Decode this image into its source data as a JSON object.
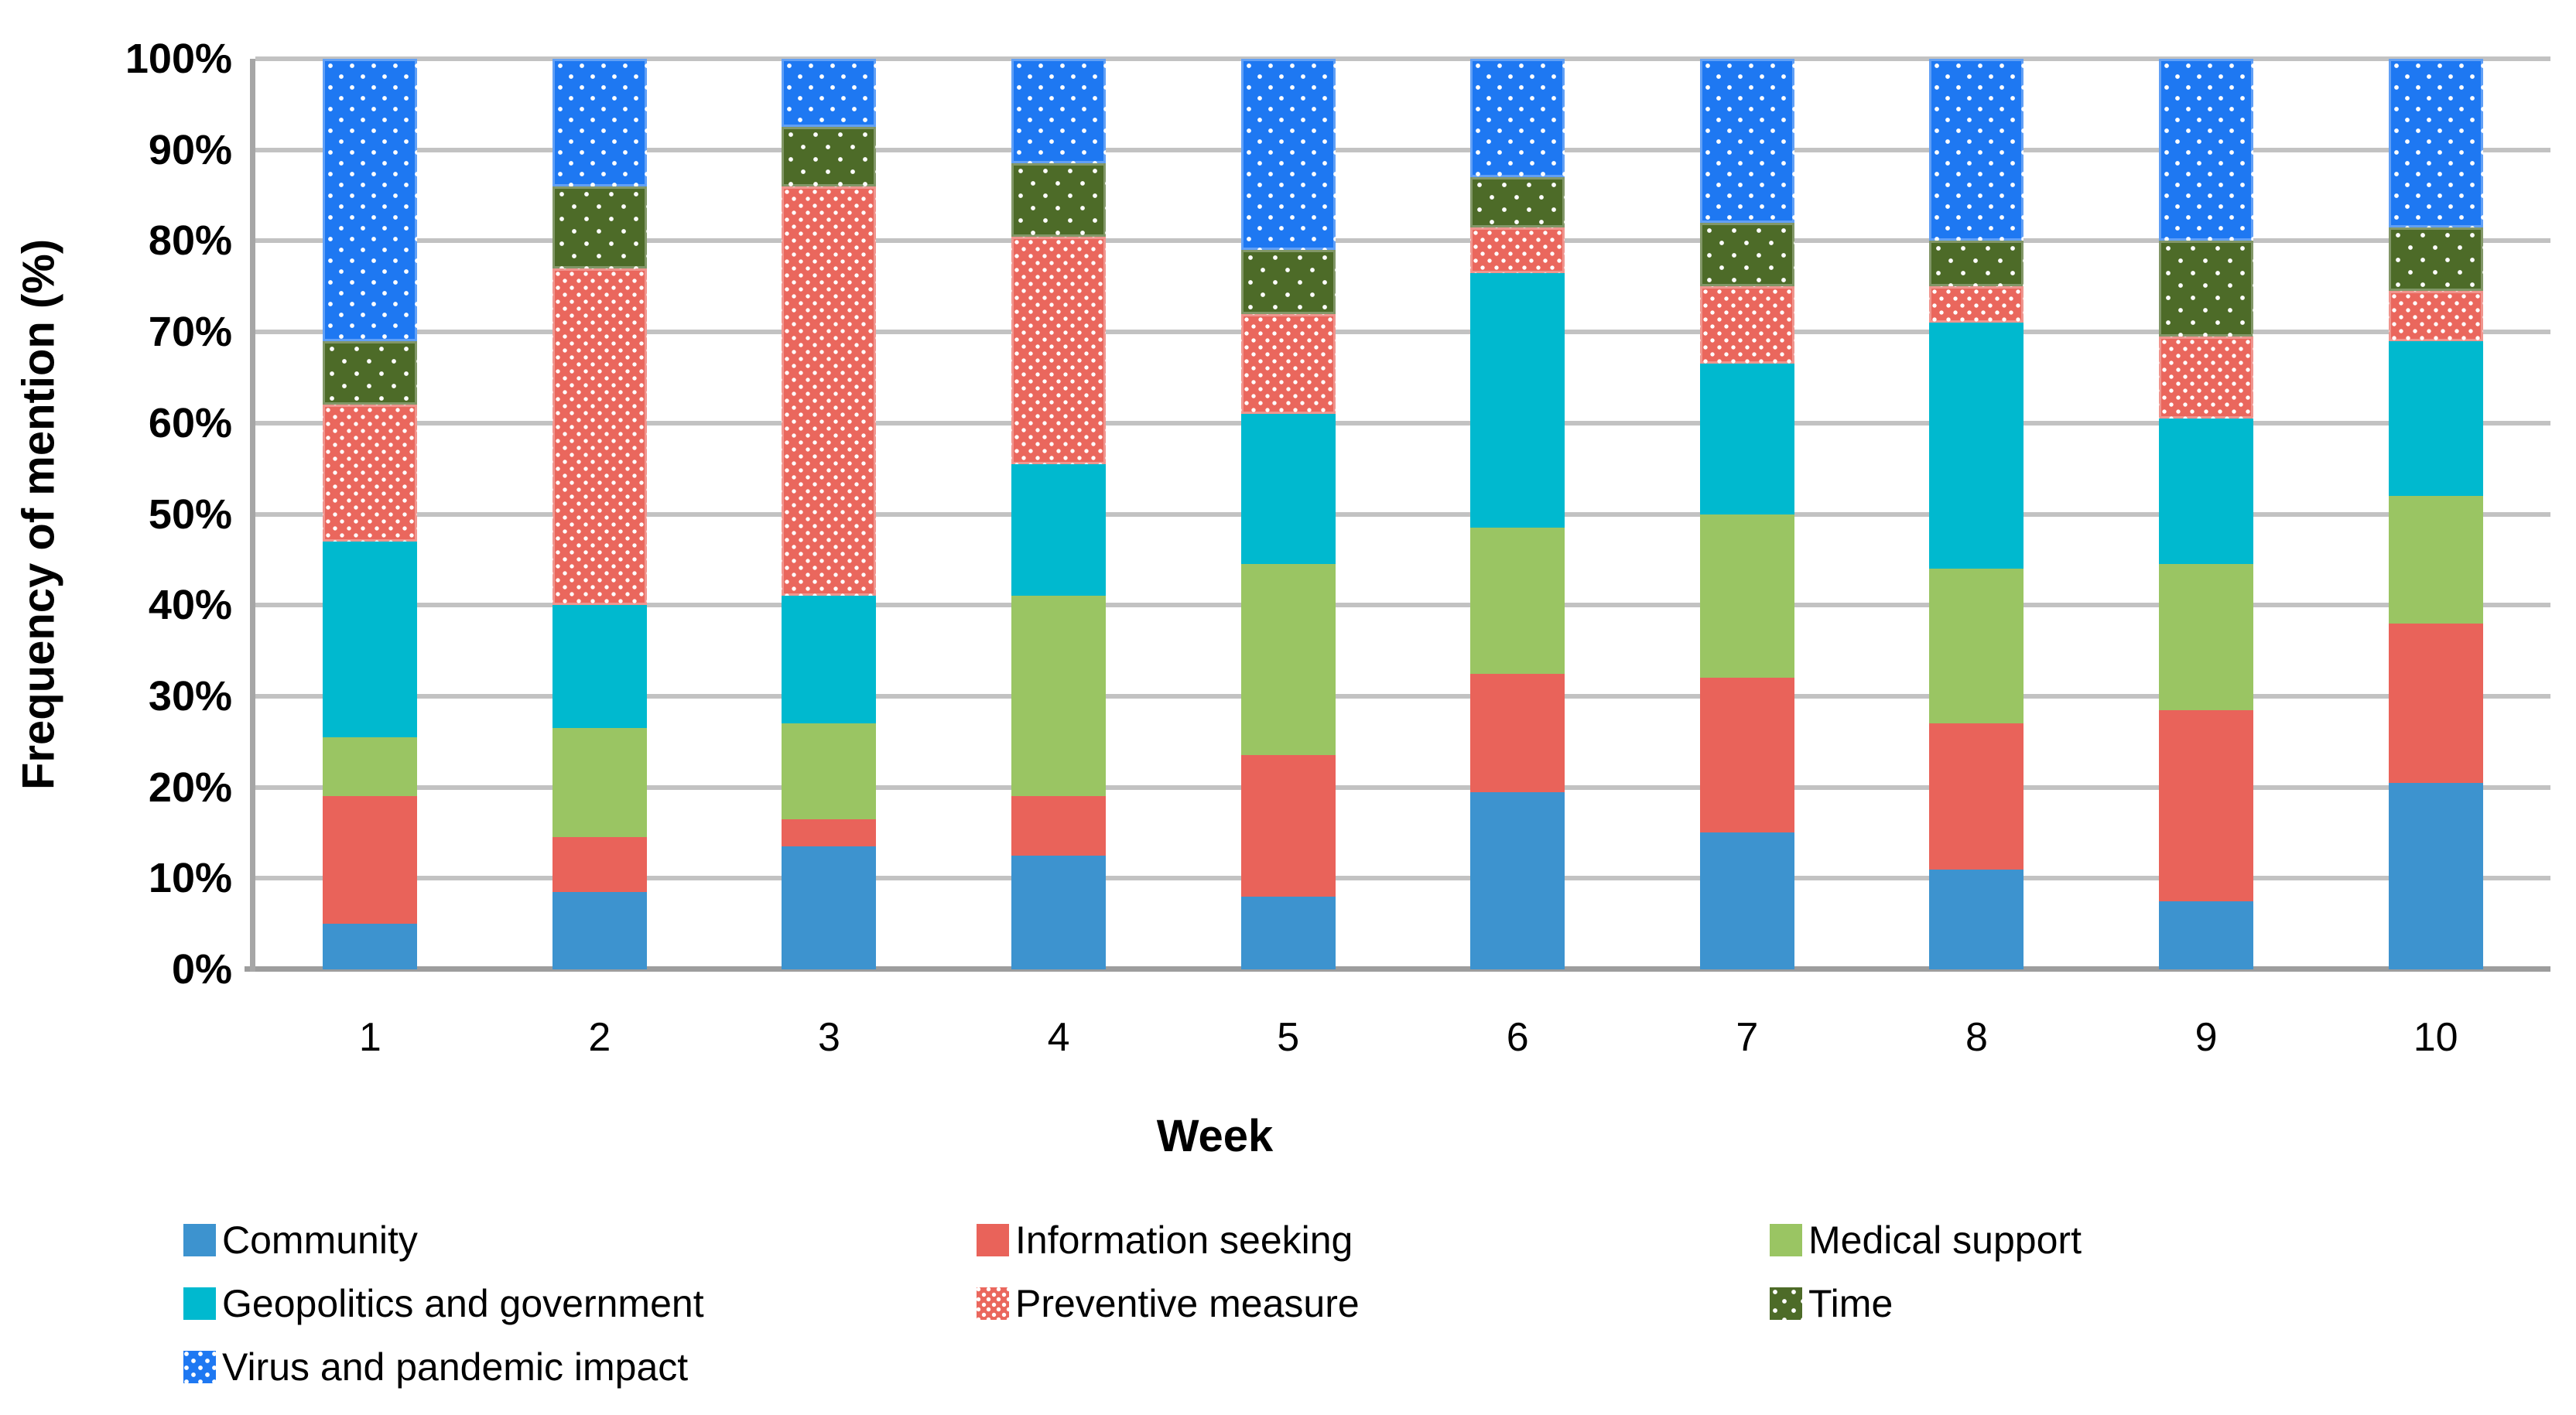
{
  "chart_data": {
    "type": "bar",
    "stacked": true,
    "percent_stacked": true,
    "title": "",
    "xlabel": "Week",
    "ylabel": "Frequency of mention (%)",
    "categories": [
      "1",
      "2",
      "3",
      "4",
      "5",
      "6",
      "7",
      "8",
      "9",
      "10"
    ],
    "ylim": [
      0,
      100
    ],
    "ytick_step": 10,
    "yticks": [
      "0%",
      "10%",
      "20%",
      "30%",
      "40%",
      "50%",
      "60%",
      "70%",
      "80%",
      "90%",
      "100%"
    ],
    "grid": "horizontal",
    "legend_position": "bottom",
    "series": [
      {
        "name": "Community",
        "color": "#3D93CF",
        "pattern": "solid",
        "values": [
          5,
          8.5,
          13.5,
          12.5,
          8,
          19.5,
          15,
          11,
          7.5,
          20.5
        ]
      },
      {
        "name": "Information seeking",
        "color": "#E9635A",
        "pattern": "solid",
        "values": [
          14,
          6,
          3,
          6.5,
          15.5,
          13,
          17,
          16,
          21,
          17.5
        ]
      },
      {
        "name": "Medical support",
        "color": "#9AC563",
        "pattern": "solid",
        "values": [
          6.5,
          12,
          10.5,
          22,
          21,
          16,
          18,
          17,
          16,
          14
        ]
      },
      {
        "name": "Geopolitics and government",
        "color": "#00B9CF",
        "pattern": "solid",
        "values": [
          21.5,
          13.5,
          14,
          14.5,
          16.5,
          28,
          16.5,
          27,
          16,
          17
        ]
      },
      {
        "name": "Preventive measure",
        "color": "#EA675D",
        "pattern": "dots-dense",
        "values": [
          15,
          37,
          45,
          25,
          11,
          5,
          8.5,
          4,
          9,
          5.5
        ]
      },
      {
        "name": "Time",
        "color": "#4D6B28",
        "pattern": "dots-sparse",
        "values": [
          7,
          9,
          6.5,
          8,
          7,
          5.5,
          7,
          5,
          10.5,
          7
        ]
      },
      {
        "name": "Virus and pandemic impact",
        "color": "#1E78F2",
        "pattern": "dots-medium",
        "values": [
          31,
          14,
          7.5,
          11.5,
          21,
          13,
          18,
          20,
          20,
          18.5
        ]
      }
    ],
    "legend_columns": [
      [
        "Community",
        "Geopolitics and government",
        "Virus and pandemic impact"
      ],
      [
        "Information seeking",
        "Preventive measure"
      ],
      [
        "Medical support",
        "Time"
      ]
    ]
  },
  "colors": {
    "background": "#ffffff",
    "gridline": "#C2C2C2",
    "axis_line": "#9D9D9D",
    "text": "#000000"
  }
}
